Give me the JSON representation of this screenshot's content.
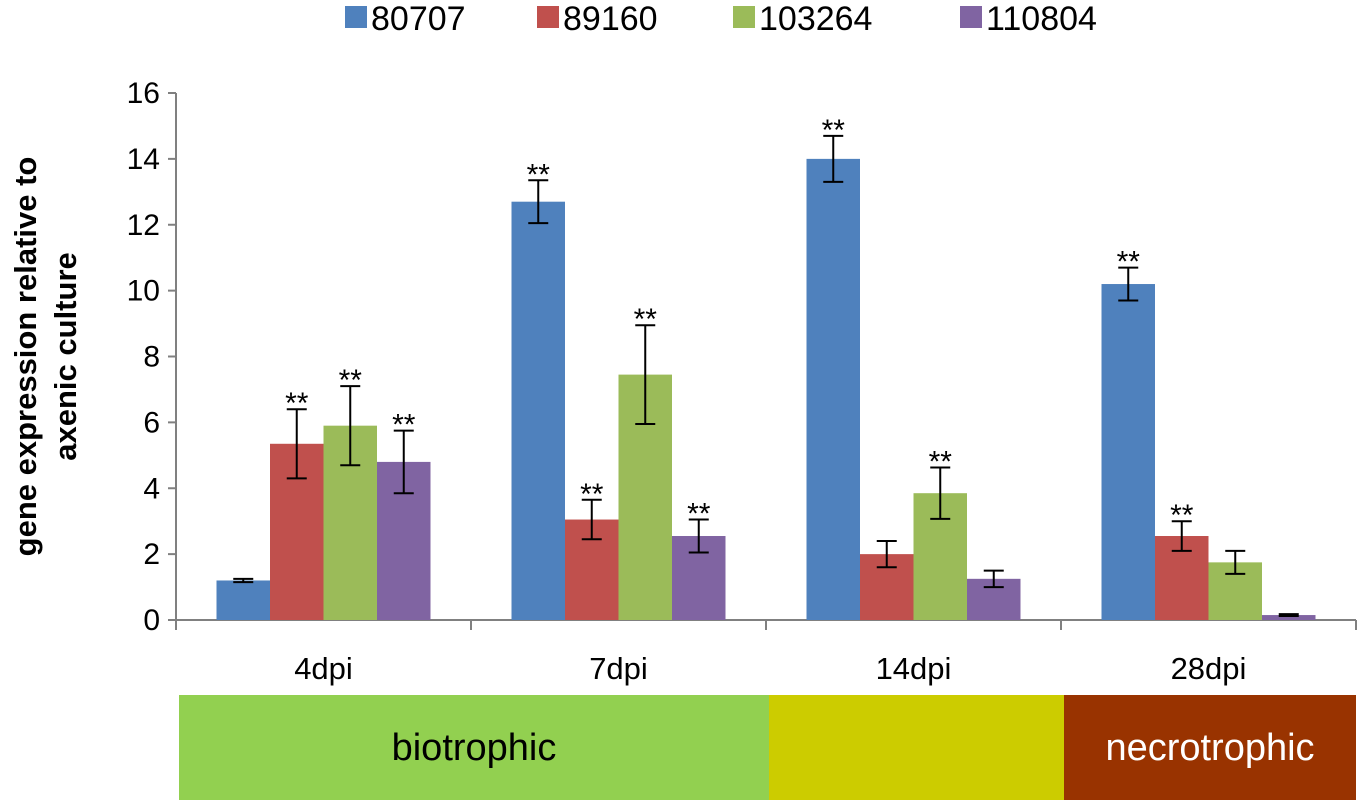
{
  "chart_data": {
    "type": "bar",
    "categories": [
      "4dpi",
      "7dpi",
      "14dpi",
      "28dpi"
    ],
    "series": [
      {
        "name": "80707",
        "color": "#4F81BD",
        "values": [
          1.2,
          12.7,
          14.0,
          10.2
        ],
        "errors": [
          0.05,
          0.65,
          0.7,
          0.5
        ],
        "sig": [
          "",
          "**",
          "**",
          "**"
        ]
      },
      {
        "name": "89160",
        "color": "#C0504D",
        "values": [
          5.35,
          3.05,
          2.0,
          2.55
        ],
        "errors": [
          1.05,
          0.6,
          0.4,
          0.45
        ],
        "sig": [
          "**",
          "**",
          "",
          "**"
        ]
      },
      {
        "name": "103264",
        "color": "#9BBB59",
        "values": [
          5.9,
          7.45,
          3.85,
          1.75
        ],
        "errors": [
          1.2,
          1.5,
          0.78,
          0.35
        ],
        "sig": [
          "**",
          "**",
          "**",
          ""
        ]
      },
      {
        "name": "110804",
        "color": "#8064A2",
        "values": [
          4.8,
          2.55,
          1.25,
          0.15
        ],
        "errors": [
          0.95,
          0.5,
          0.25,
          0.03
        ],
        "sig": [
          "**",
          "**",
          "",
          ""
        ]
      }
    ],
    "ylabel": [
      "gene expression relative to",
      "axenic culture"
    ],
    "ylim": [
      0,
      16
    ],
    "yticks": [
      0,
      2,
      4,
      6,
      8,
      10,
      12,
      14,
      16
    ],
    "legend_position": "top",
    "grid": false
  },
  "phases": [
    {
      "label": "biotrophic",
      "color": "#92D050",
      "from": 0,
      "to": 2
    },
    {
      "label": "",
      "color": "#CCCC00",
      "from": 2,
      "to": 3
    },
    {
      "label": "necrotrophic",
      "color": "#993300",
      "text_color": "#ffffff",
      "from": 3,
      "to": 4
    }
  ]
}
